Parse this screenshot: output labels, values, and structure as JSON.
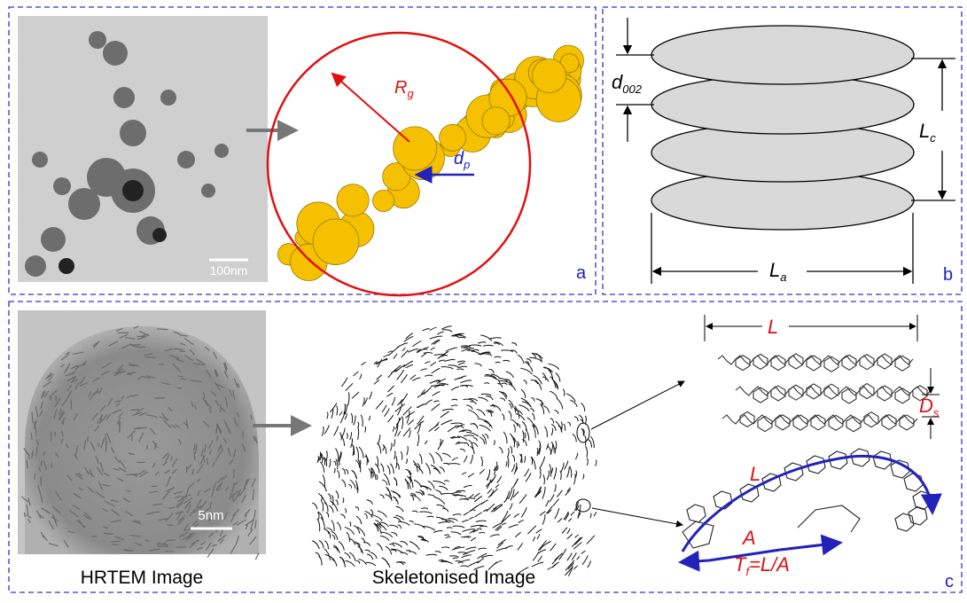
{
  "panel_a": {
    "scale_bar": "100nm",
    "radius": {
      "main": "R",
      "sub": "g"
    },
    "particle": {
      "main": "d",
      "sub": "p"
    },
    "letter": "a"
  },
  "panel_b": {
    "spacing": {
      "main": "d",
      "sub": "002"
    },
    "height": {
      "main": "L",
      "sub": "c"
    },
    "width": {
      "main": "L",
      "sub": "a"
    },
    "letter": "b"
  },
  "panel_c": {
    "scale_bar": "5nm",
    "hrtem_caption": "HRTEM Image",
    "skeleton_caption": "Skeletonised Image",
    "length_top": "L",
    "separation": {
      "main": "D",
      "sub": "s"
    },
    "length_curve": "L",
    "end_distance": "A",
    "tortuosity": {
      "main": "T",
      "sub": "f",
      "rest": "=L/A"
    },
    "letter": "c"
  }
}
